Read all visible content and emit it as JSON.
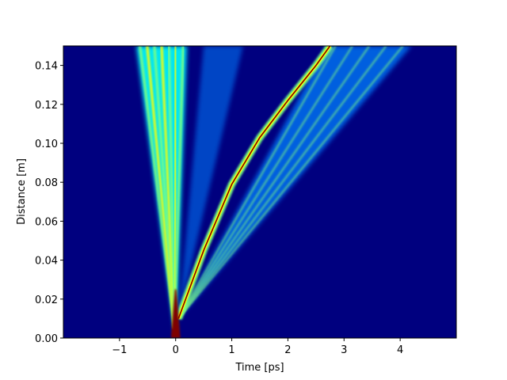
{
  "colors": {
    "background": "#00007f",
    "colormap": [
      "#00007f",
      "#0000ff",
      "#007fff",
      "#00ffff",
      "#7fff7f",
      "#ffff00",
      "#ff7f00",
      "#ff0000",
      "#7f0000"
    ]
  },
  "chart_data": {
    "type": "heatmap",
    "title": "",
    "xlabel": "Time [ps]",
    "ylabel": "Distance [m]",
    "xlim": [
      -2.0,
      5.0
    ],
    "ylim": [
      0.0,
      0.15
    ],
    "xticks": [
      -1,
      0,
      1,
      2,
      3,
      4
    ],
    "xtick_labels": [
      "−1",
      "0",
      "1",
      "2",
      "3",
      "4"
    ],
    "yticks": [
      0.0,
      0.02,
      0.04,
      0.06,
      0.08,
      0.1,
      0.12,
      0.14
    ],
    "ytick_labels": [
      "0.00",
      "0.02",
      "0.04",
      "0.06",
      "0.08",
      "0.10",
      "0.12",
      "0.14"
    ],
    "colormap": "jet",
    "grid": false,
    "features": [
      {
        "name": "input pulse origin",
        "t": 0.0,
        "z": 0.0,
        "intensity": 1.0
      },
      {
        "name": "soliton trajectory",
        "points": [
          [
            0.05,
            0.01
          ],
          [
            0.5,
            0.045
          ],
          [
            1.0,
            0.079
          ],
          [
            1.5,
            0.103
          ],
          [
            2.0,
            0.122
          ],
          [
            2.5,
            0.14
          ],
          [
            2.75,
            0.15
          ]
        ],
        "intensity": 0.95
      },
      {
        "name": "dispersive wave fan",
        "t_range_at_top": [
          2.7,
          4.2
        ],
        "intensity": 0.45
      },
      {
        "name": "spectral broadening fan",
        "t_range_at_top": [
          -0.7,
          0.2
        ],
        "intensity": 0.65
      },
      {
        "name": "outer weak fan",
        "t_range_at_top": [
          0.5,
          1.2
        ],
        "intensity": 0.3
      }
    ]
  }
}
